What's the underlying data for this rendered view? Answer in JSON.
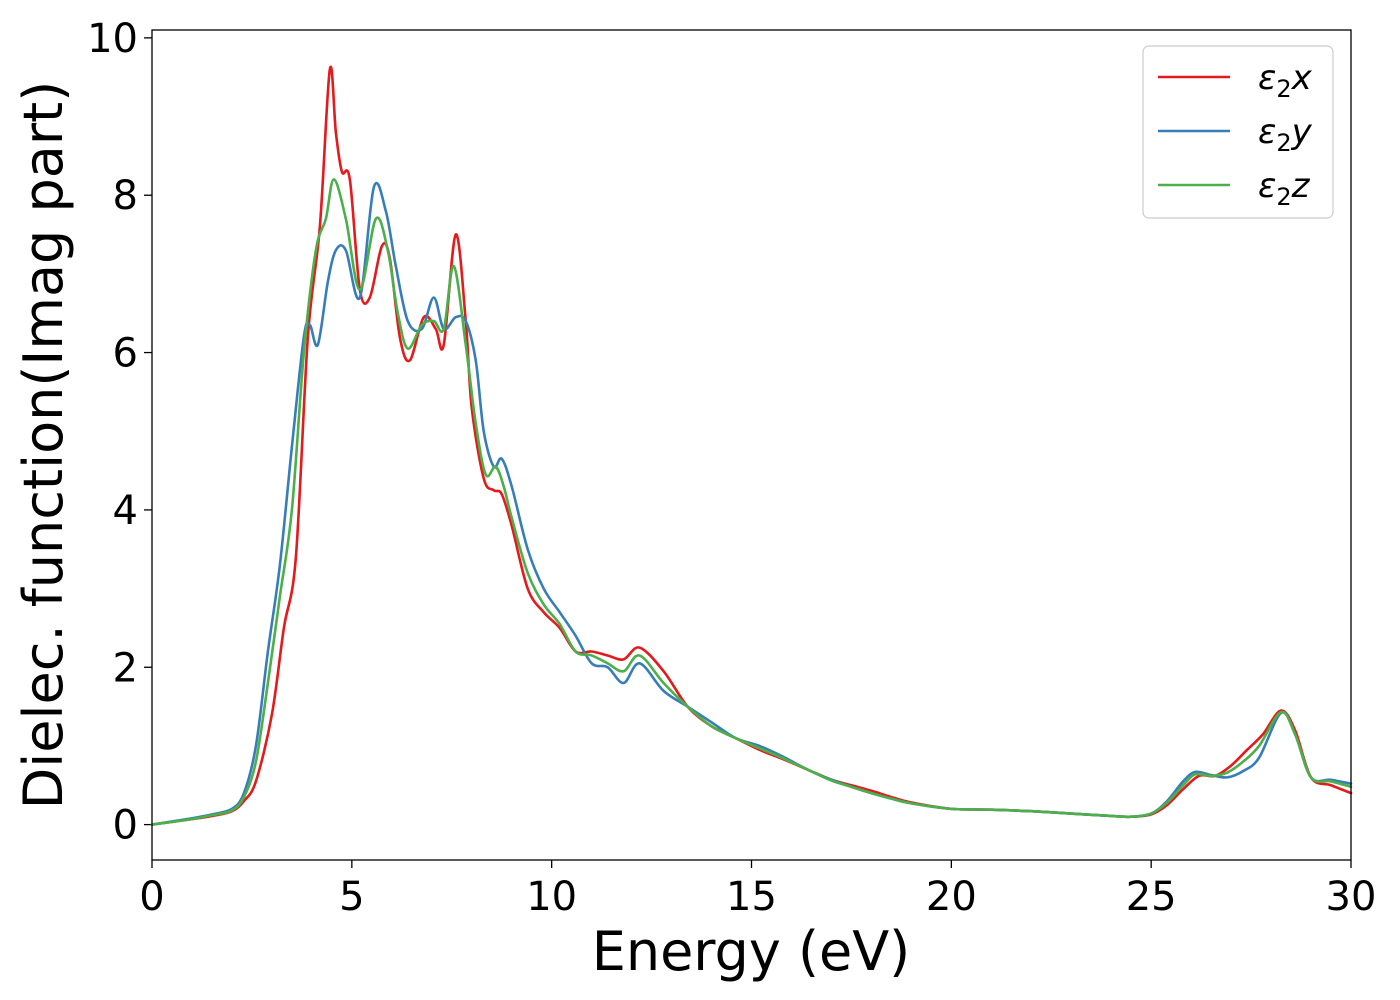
{
  "chart_data": {
    "type": "line",
    "xlabel": "Energy (eV)",
    "ylabel": "Dielec. function(Imag part)",
    "xlim": [
      0,
      30
    ],
    "ylim": [
      -0.45,
      10.1
    ],
    "xticks": [
      0,
      5,
      10,
      15,
      20,
      25,
      30
    ],
    "yticks": [
      0,
      2,
      4,
      6,
      8,
      10
    ],
    "xtick_labels": [
      "0",
      "5",
      "10",
      "15",
      "20",
      "25",
      "30"
    ],
    "ytick_labels": [
      "0",
      "2",
      "4",
      "6",
      "8",
      "10"
    ],
    "grid": false,
    "legend_position": "top-right",
    "series": [
      {
        "name": "ε₂x",
        "legend_base": "ε",
        "legend_sub": "2",
        "legend_suffix": "x",
        "color": "#e41a1c",
        "x": [
          0,
          1,
          1.5,
          2,
          2.3,
          2.6,
          3,
          3.3,
          3.6,
          3.9,
          4.2,
          4.45,
          4.6,
          4.75,
          4.95,
          5.2,
          5.45,
          5.75,
          5.95,
          6.2,
          6.45,
          6.8,
          7.1,
          7.3,
          7.6,
          7.85,
          8.0,
          8.3,
          8.55,
          8.75,
          9.0,
          9.4,
          9.8,
          10.2,
          10.6,
          11.0,
          11.4,
          11.8,
          12.2,
          12.8,
          13.4,
          14.0,
          14.6,
          15.2,
          15.8,
          16.4,
          17,
          17.5,
          18,
          18.5,
          19,
          20,
          21,
          22,
          23,
          24,
          24.5,
          25,
          25.4,
          25.8,
          26.2,
          26.6,
          27.0,
          27.4,
          27.8,
          28.25,
          28.6,
          29,
          29.5,
          30
        ],
        "y": [
          0,
          0.07,
          0.11,
          0.17,
          0.3,
          0.55,
          1.4,
          2.5,
          3.4,
          6.2,
          7.6,
          9.6,
          8.8,
          8.3,
          8.2,
          6.8,
          6.7,
          7.35,
          7.2,
          6.2,
          5.9,
          6.45,
          6.3,
          6.1,
          7.5,
          6.4,
          5.3,
          4.4,
          4.25,
          4.2,
          3.8,
          3.0,
          2.7,
          2.5,
          2.2,
          2.2,
          2.15,
          2.1,
          2.25,
          1.95,
          1.5,
          1.25,
          1.1,
          0.95,
          0.83,
          0.7,
          0.57,
          0.5,
          0.43,
          0.35,
          0.28,
          0.2,
          0.19,
          0.17,
          0.14,
          0.11,
          0.1,
          0.13,
          0.25,
          0.45,
          0.62,
          0.62,
          0.75,
          0.95,
          1.15,
          1.45,
          1.2,
          0.6,
          0.5,
          0.4
        ]
      },
      {
        "name": "ε₂y",
        "legend_base": "ε",
        "legend_sub": "2",
        "legend_suffix": "y",
        "color": "#377eb8",
        "x": [
          0,
          1,
          1.5,
          2,
          2.3,
          2.6,
          2.9,
          3.2,
          3.5,
          3.8,
          3.95,
          4.15,
          4.4,
          4.6,
          4.85,
          5.2,
          5.55,
          5.85,
          6.1,
          6.4,
          6.75,
          7.05,
          7.3,
          7.6,
          7.85,
          8.1,
          8.3,
          8.55,
          8.75,
          9.0,
          9.4,
          9.8,
          10.2,
          10.6,
          11.0,
          11.4,
          11.8,
          12.2,
          12.8,
          13.4,
          14.0,
          14.6,
          15.2,
          15.8,
          16.4,
          17,
          17.5,
          18,
          18.5,
          19,
          20,
          21,
          22,
          23,
          24,
          24.5,
          25,
          25.4,
          25.8,
          26.1,
          26.5,
          26.9,
          27.3,
          27.7,
          28.25,
          28.6,
          29,
          29.5,
          30
        ],
        "y": [
          0,
          0.08,
          0.13,
          0.2,
          0.4,
          1.0,
          2.2,
          3.3,
          4.8,
          6.2,
          6.35,
          6.1,
          6.9,
          7.3,
          7.3,
          6.7,
          8.1,
          7.8,
          7.1,
          6.4,
          6.3,
          6.7,
          6.3,
          6.45,
          6.4,
          5.9,
          5.0,
          4.55,
          4.65,
          4.3,
          3.5,
          3.0,
          2.7,
          2.4,
          2.05,
          2.0,
          1.8,
          2.05,
          1.7,
          1.5,
          1.3,
          1.1,
          1.0,
          0.86,
          0.7,
          0.57,
          0.48,
          0.4,
          0.33,
          0.27,
          0.2,
          0.19,
          0.17,
          0.14,
          0.11,
          0.1,
          0.14,
          0.3,
          0.55,
          0.67,
          0.63,
          0.6,
          0.68,
          0.85,
          1.42,
          1.15,
          0.6,
          0.57,
          0.52
        ]
      },
      {
        "name": "ε₂z",
        "legend_base": "ε",
        "legend_sub": "2",
        "legend_suffix": "z",
        "color": "#4daf4a",
        "x": [
          0,
          1,
          1.5,
          2,
          2.3,
          2.6,
          2.9,
          3.2,
          3.5,
          3.8,
          4.1,
          4.35,
          4.55,
          4.85,
          5.2,
          5.6,
          5.9,
          6.15,
          6.4,
          6.75,
          7.05,
          7.3,
          7.55,
          7.85,
          8.1,
          8.35,
          8.6,
          8.8,
          9.0,
          9.4,
          9.8,
          10.2,
          10.6,
          11.0,
          11.4,
          11.8,
          12.2,
          12.8,
          13.4,
          14.0,
          14.6,
          15.2,
          15.8,
          16.4,
          17,
          17.5,
          18,
          18.5,
          19,
          20,
          21,
          22,
          23,
          24,
          24.5,
          25,
          25.4,
          25.8,
          26.1,
          26.5,
          26.9,
          27.3,
          27.7,
          28.25,
          28.6,
          29,
          29.5,
          30
        ],
        "y": [
          0,
          0.07,
          0.12,
          0.18,
          0.35,
          0.8,
          1.8,
          2.9,
          4.0,
          6.0,
          7.3,
          7.7,
          8.2,
          7.7,
          6.8,
          7.7,
          7.3,
          6.5,
          6.05,
          6.35,
          6.4,
          6.3,
          7.1,
          6.1,
          5.1,
          4.45,
          4.55,
          4.3,
          3.9,
          3.2,
          2.8,
          2.55,
          2.2,
          2.15,
          2.05,
          1.95,
          2.15,
          1.8,
          1.5,
          1.25,
          1.1,
          0.97,
          0.84,
          0.7,
          0.56,
          0.48,
          0.4,
          0.33,
          0.27,
          0.2,
          0.19,
          0.17,
          0.14,
          0.11,
          0.1,
          0.14,
          0.28,
          0.5,
          0.64,
          0.62,
          0.66,
          0.8,
          1.0,
          1.43,
          1.15,
          0.6,
          0.55,
          0.48
        ]
      }
    ]
  }
}
